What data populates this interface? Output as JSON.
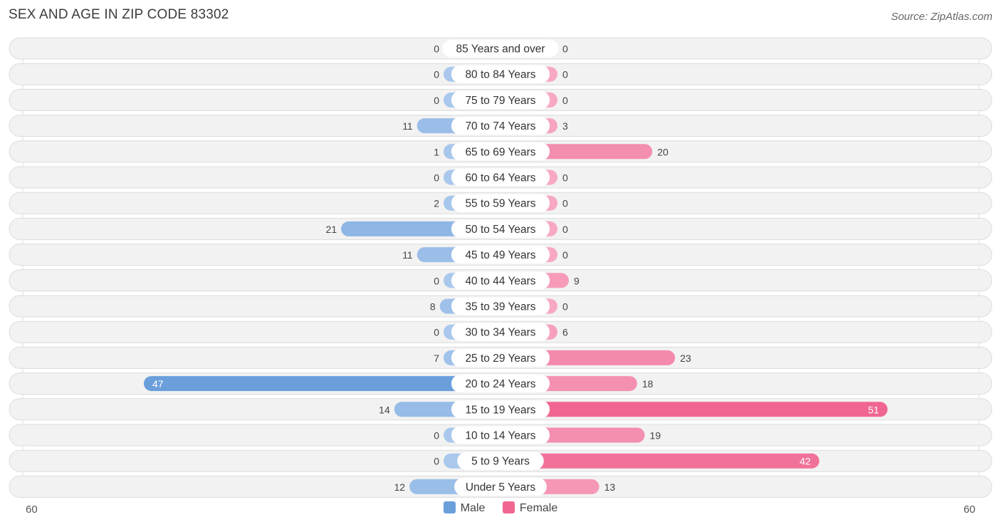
{
  "title": "SEX AND AGE IN ZIP CODE 83302",
  "source": "Source: ZipAtlas.com",
  "colors": {
    "male": "#6a9fdc",
    "male_light": "#a9c8ec",
    "female": "#f06690",
    "female_light": "#f7a8c2"
  },
  "legend": {
    "male": "Male",
    "female": "Female"
  },
  "axis": {
    "left": "60",
    "right": "60"
  },
  "chart_data": {
    "type": "bar",
    "orientation": "horizontal-butterfly",
    "title": "SEX AND AGE IN ZIP CODE 83302",
    "xlim": [
      -60,
      60
    ],
    "categories": [
      "85 Years and over",
      "80 to 84 Years",
      "75 to 79 Years",
      "70 to 74 Years",
      "65 to 69 Years",
      "60 to 64 Years",
      "55 to 59 Years",
      "50 to 54 Years",
      "45 to 49 Years",
      "40 to 44 Years",
      "35 to 39 Years",
      "30 to 34 Years",
      "25 to 29 Years",
      "20 to 24 Years",
      "15 to 19 Years",
      "10 to 14 Years",
      "5 to 9 Years",
      "Under 5 Years"
    ],
    "series": [
      {
        "name": "Male",
        "values": [
          0,
          0,
          0,
          11,
          1,
          0,
          2,
          21,
          11,
          0,
          8,
          0,
          7,
          47,
          14,
          0,
          0,
          12
        ]
      },
      {
        "name": "Female",
        "values": [
          0,
          0,
          0,
          3,
          20,
          0,
          0,
          0,
          0,
          9,
          0,
          6,
          23,
          18,
          51,
          19,
          42,
          13
        ]
      }
    ]
  }
}
